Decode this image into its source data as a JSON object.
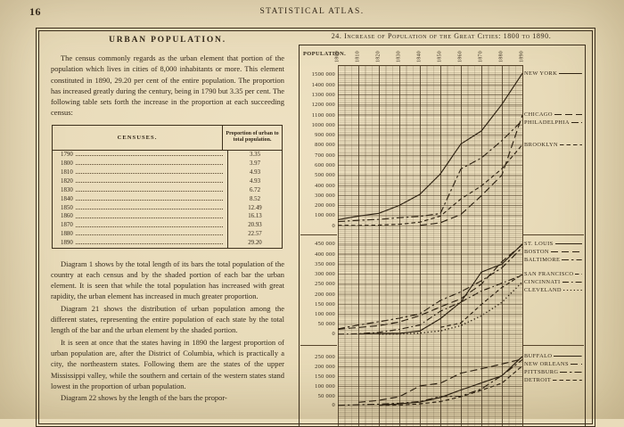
{
  "page": {
    "number": "16",
    "header": "STATISTICAL ATLAS."
  },
  "article": {
    "title": "URBAN POPULATION.",
    "paragraphs": [
      "The census commonly regards as the urban element that portion of the population which lives in cities of 8,000 inhabitants or more.  This element constituted in 1890, 29.20 per cent of the entire population.  The proportion has increased greatly during the century, being in 1790 but 3.35 per cent.  The following table sets forth the increase in the proportion at each succeeding census:",
      "Diagram 1 shows by the total length of its bars the total population of the country at each census and by the shaded portion of each bar the urban element.  It is seen that while the total population has increased with great rapidity, the urban element has increased in much greater proportion.",
      "Diagram 21 shows the distribution of urban population among the different states, representing the entire population of each state by the total length of the bar and the urban element by the shaded portion.",
      "It is seen at once that the states having in 1890 the largest proportion of urban population are, after the District of Columbia, which is practically a city, the northeastern states.  Following them are the states of the upper Mississippi valley, while the southern and certain of the western states stand lowest in the proportion of urban population.",
      "Diagram 22 shows by the length of the bars the propor-"
    ]
  },
  "table": {
    "header_col1": "CENSUSES.",
    "header_col2": "Proportion of urban to total population.",
    "rows": [
      [
        "1790",
        "3.35"
      ],
      [
        "1800",
        "3.97"
      ],
      [
        "1810",
        "4.93"
      ],
      [
        "1820",
        "4.93"
      ],
      [
        "1830",
        "6.72"
      ],
      [
        "1840",
        "8.52"
      ],
      [
        "1850",
        "12.49"
      ],
      [
        "1860",
        "16.13"
      ],
      [
        "1870",
        "20.93"
      ],
      [
        "1880",
        "22.57"
      ],
      [
        "1890",
        "29.20"
      ]
    ]
  },
  "chart_data": {
    "type": "line",
    "title": "24. Increase of Population of the Great Cities: 1800 to 1890.",
    "ylabel": "POPULATION.",
    "xlabel": "",
    "x": [
      1800,
      1810,
      1820,
      1830,
      1840,
      1850,
      1860,
      1870,
      1880,
      1890
    ],
    "grid": true,
    "legend_position": "right",
    "line_color": "#2e2212",
    "sections": [
      {
        "ylim": [
          0,
          1500000
        ],
        "tick_step": 100000,
        "ticks": [
          "1500 000",
          "1400 000",
          "1300 000",
          "1200 000",
          "1100 000",
          "1000 000",
          "900 000",
          "800 000",
          "700 000",
          "600 000",
          "500 000",
          "400 000",
          "300 000",
          "200 000",
          "100 000",
          "0"
        ],
        "series": [
          {
            "name": "NEW YORK",
            "style": "solid",
            "values": [
              60515,
              96373,
              123706,
              202589,
              312710,
              515547,
              813669,
              942292,
              1206299,
              1515301
            ]
          },
          {
            "name": "CHICAGO",
            "style": "long-dash",
            "values": [
              null,
              null,
              null,
              null,
              4470,
              29963,
              112172,
              298977,
              503185,
              1099850
            ]
          },
          {
            "name": "PHILADELPHIA",
            "style": "dash-dot",
            "values": [
              41220,
              53722,
              63802,
              80462,
              93665,
              121376,
              565529,
              674022,
              847170,
              1046964
            ]
          },
          {
            "name": "BROOKLYN",
            "style": "med-dash",
            "values": [
              5740,
              4402,
              7175,
              15396,
              36233,
              96838,
              266661,
              396099,
              566663,
              806343
            ]
          }
        ]
      },
      {
        "ylim": [
          0,
          450000
        ],
        "tick_step": 50000,
        "ticks": [
          "450 000",
          "400 000",
          "350 000",
          "300 000",
          "250 000",
          "200 000",
          "150 000",
          "100 000",
          "50 000",
          "0"
        ],
        "series": [
          {
            "name": "ST. LOUIS",
            "style": "solid",
            "values": [
              null,
              1600,
              4598,
              4977,
              16469,
              77860,
              160773,
              310864,
              350518,
              451770
            ]
          },
          {
            "name": "BOSTON",
            "style": "long-dash",
            "values": [
              24937,
              33787,
              43298,
              61392,
              93383,
              136881,
              177840,
              250526,
              362839,
              448477
            ]
          },
          {
            "name": "BALTIMORE",
            "style": "dash-dot",
            "values": [
              26514,
              46555,
              62738,
              80620,
              102313,
              169054,
              212418,
              267354,
              332313,
              434439
            ]
          },
          {
            "name": "SAN FRANCISCO",
            "style": "med-dash",
            "values": [
              null,
              null,
              null,
              null,
              null,
              34776,
              56802,
              149473,
              233959,
              298997
            ]
          },
          {
            "name": "CINCINNATI",
            "style": "dash-dot-dot",
            "values": [
              750,
              2540,
              9642,
              24831,
              46338,
              115435,
              161044,
              216239,
              255139,
              296908
            ]
          },
          {
            "name": "CLEVELAND",
            "style": "dotted",
            "values": [
              null,
              null,
              606,
              1076,
              6071,
              17034,
              43417,
              92829,
              160146,
              261353
            ]
          }
        ]
      },
      {
        "ylim": [
          0,
          250000
        ],
        "tick_step": 50000,
        "ticks": [
          "250 000",
          "200 000",
          "150 000",
          "100 000",
          "50 000",
          "0"
        ],
        "series": [
          {
            "name": "BUFFALO",
            "style": "solid",
            "values": [
              null,
              null,
              2095,
              8668,
              18213,
              42261,
              81129,
              117714,
              155134,
              255664
            ]
          },
          {
            "name": "NEW ORLEANS",
            "style": "long-dash",
            "values": [
              null,
              17242,
              27176,
              46082,
              102193,
              116375,
              168675,
              191418,
              216090,
              242039
            ]
          },
          {
            "name": "PITTSBURG",
            "style": "dash-dot",
            "values": [
              1565,
              4768,
              7248,
              12568,
              21115,
              46601,
              49221,
              86076,
              156389,
              238617
            ]
          },
          {
            "name": "DETROIT",
            "style": "med-dash",
            "values": [
              null,
              null,
              1422,
              2222,
              9102,
              21019,
              45619,
              79577,
              116340,
              205876
            ]
          }
        ]
      }
    ]
  }
}
